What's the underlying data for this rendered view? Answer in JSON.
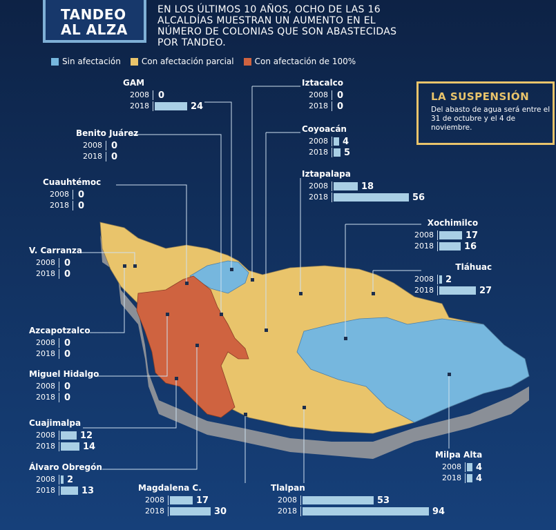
{
  "title": {
    "line1": "TANDEO",
    "line2": "AL ALZA"
  },
  "subtitle": "En los últimos 10 años, ocho de las 16 alcaldías muestran un aumento en el número de colonias que son abastecidas por tandeo.",
  "legend": [
    {
      "label": "Sin afectación",
      "color": "#76b7de"
    },
    {
      "label": "Con afectación parcial",
      "color": "#e9c46b"
    },
    {
      "label": "Con afectación de 100%",
      "color": "#cf6340"
    }
  ],
  "suspension": {
    "heading": "LA SUSPENSIÓN",
    "body": "Del abasto de agua será entre el 31 de octubre y el 4 de noviembre."
  },
  "years": [
    "2008",
    "2018"
  ],
  "alcaldias": [
    {
      "id": "gam",
      "name": "GAM",
      "v2008": 0,
      "v2018": 24,
      "status": "sin afectación"
    },
    {
      "id": "iztacalco",
      "name": "Iztacalco",
      "v2008": 0,
      "v2018": 0,
      "status": "con afectación parcial"
    },
    {
      "id": "benito-juarez",
      "name": "Benito Juárez",
      "v2008": 0,
      "v2018": 0,
      "status": "con afectación parcial"
    },
    {
      "id": "coyoacan",
      "name": "Coyoacán",
      "v2008": 4,
      "v2018": 5,
      "status": "con afectación parcial"
    },
    {
      "id": "iztapalapa",
      "name": "Iztapalapa",
      "v2008": 18,
      "v2018": 56,
      "status": "con afectación parcial"
    },
    {
      "id": "cuauhtemoc",
      "name": "Cuauhtémoc",
      "v2008": 0,
      "v2018": 0,
      "status": "con afectación de 100%"
    },
    {
      "id": "xochimilco",
      "name": "Xochimilco",
      "v2008": 17,
      "v2018": 16,
      "status": "sin afectación"
    },
    {
      "id": "v-carranza",
      "name": "V. Carranza",
      "v2008": 0,
      "v2018": 0,
      "status": "con afectación parcial"
    },
    {
      "id": "tlahuac",
      "name": "Tláhuac",
      "v2008": 2,
      "v2018": 27,
      "status": "con afectación parcial"
    },
    {
      "id": "azcapotzalco",
      "name": "Azcapotzalco",
      "v2008": 0,
      "v2018": 0,
      "status": "con afectación parcial"
    },
    {
      "id": "miguel-hidalgo",
      "name": "Miguel Hidalgo",
      "v2008": 0,
      "v2018": 0,
      "status": "con afectación de 100%"
    },
    {
      "id": "cuajimalpa",
      "name": "Cuajimalpa",
      "v2008": 12,
      "v2018": 14,
      "status": "con afectación de 100%"
    },
    {
      "id": "milpa-alta",
      "name": "Milpa Alta",
      "v2008": 4,
      "v2018": 4,
      "status": "sin afectación"
    },
    {
      "id": "alvaro-obregon",
      "name": "Álvaro Obregón",
      "v2008": 2,
      "v2018": 13,
      "status": "con afectación de 100%"
    },
    {
      "id": "magdalena-c",
      "name": "Magdalena C.",
      "v2008": 17,
      "v2018": 30,
      "status": "con afectación de 100%"
    },
    {
      "id": "tlalpan",
      "name": "Tlalpan",
      "v2008": 53,
      "v2018": 94,
      "status": "con afectación parcial"
    }
  ]
}
